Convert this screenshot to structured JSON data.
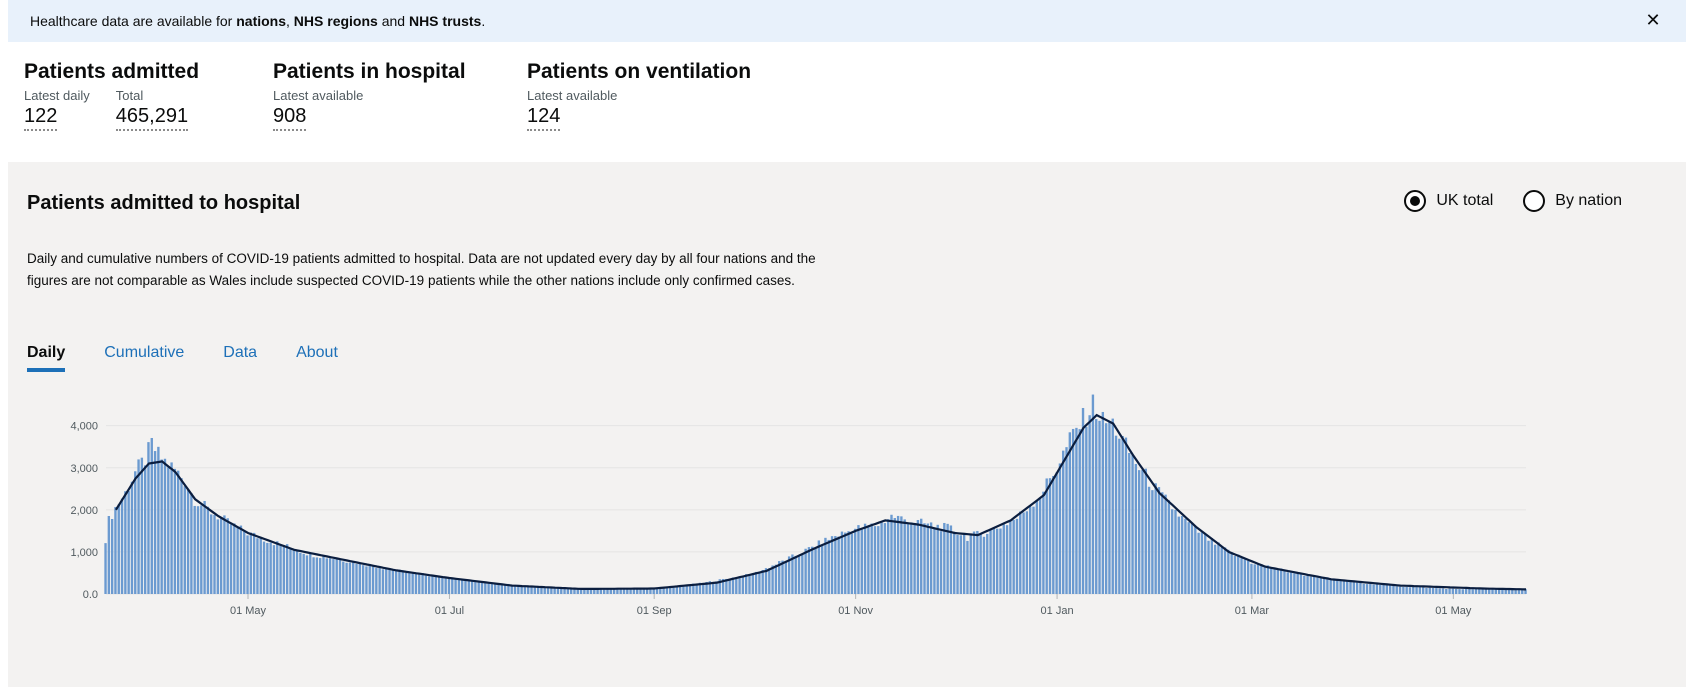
{
  "banner": {
    "prefix": "Healthcare data are available for ",
    "link1": "nations",
    "sep1": ", ",
    "link2": "NHS regions",
    "sep2": " and ",
    "link3": "NHS trusts",
    "suffix": ".",
    "close_icon": "close-icon"
  },
  "headlines": {
    "admitted": {
      "title": "Patients admitted",
      "daily_label": "Latest daily",
      "daily_value": "122",
      "total_label": "Total",
      "total_value": "465,291"
    },
    "in_hospital": {
      "title": "Patients in hospital",
      "label": "Latest available",
      "value": "908"
    },
    "ventilation": {
      "title": "Patients on ventilation",
      "label": "Latest available",
      "value": "124"
    }
  },
  "card": {
    "title": "Patients admitted to hospital",
    "radios": [
      {
        "label": "UK total",
        "checked": true
      },
      {
        "label": "By nation",
        "checked": false
      }
    ],
    "description": "Daily and cumulative numbers of COVID-19 patients admitted to hospital. Data are not updated every day by all four nations and the figures are not comparable as Wales include suspected COVID-19 patients while the other nations include only confirmed cases.",
    "tabs": [
      {
        "label": "Daily",
        "active": true
      },
      {
        "label": "Cumulative",
        "active": false
      },
      {
        "label": "Data",
        "active": false
      },
      {
        "label": "About",
        "active": false
      }
    ]
  },
  "colors": {
    "bar": "#6b9ad0",
    "line": "#0b1e3f",
    "grid": "#e4e4e4",
    "accent": "#1d70b8"
  },
  "chart_data": {
    "type": "bar",
    "series": [
      {
        "name": "",
        "kind": "bar",
        "description_only": false
      },
      {
        "name": "",
        "kind": "line"
      }
    ],
    "x_tick_labels": [
      "01 May",
      "01 Jul",
      "01 Sep",
      "01 Nov",
      "01 Jan",
      "01 Mar",
      "01 May"
    ],
    "y_tick_labels": [
      "0.0",
      "1,000",
      "2,000",
      "3,000",
      "4,000"
    ],
    "ylim": [
      0,
      4800
    ],
    "x_range": [
      "2020-03-19",
      "2021-05-23"
    ],
    "x_tick_dates": [
      "2020-05-01",
      "2020-07-01",
      "2020-09-01",
      "2020-11-01",
      "2021-01-01",
      "2021-03-01",
      "2021-05-01"
    ],
    "daily_anchor_points": [
      [
        "2020-03-19",
        1300
      ],
      [
        "2020-03-20",
        1750
      ],
      [
        "2020-03-22",
        2050
      ],
      [
        "2020-03-25",
        2400
      ],
      [
        "2020-03-28",
        2900
      ],
      [
        "2020-03-31",
        3200
      ],
      [
        "2020-04-02",
        3550
      ],
      [
        "2020-04-04",
        3300
      ],
      [
        "2020-04-06",
        3150
      ],
      [
        "2020-04-09",
        2950
      ],
      [
        "2020-04-12",
        2700
      ],
      [
        "2020-04-15",
        2250
      ],
      [
        "2020-04-20",
        1950
      ],
      [
        "2020-04-25",
        1700
      ],
      [
        "2020-05-01",
        1450
      ],
      [
        "2020-05-10",
        1200
      ],
      [
        "2020-05-20",
        950
      ],
      [
        "2020-06-01",
        780
      ],
      [
        "2020-06-15",
        560
      ],
      [
        "2020-07-01",
        380
      ],
      [
        "2020-07-15",
        250
      ],
      [
        "2020-08-01",
        140
      ],
      [
        "2020-08-15",
        110
      ],
      [
        "2020-09-01",
        130
      ],
      [
        "2020-09-15",
        250
      ],
      [
        "2020-10-01",
        470
      ],
      [
        "2020-10-15",
        950
      ],
      [
        "2020-10-25",
        1350
      ],
      [
        "2020-11-01",
        1550
      ],
      [
        "2020-11-08",
        1650
      ],
      [
        "2020-11-12",
        1850
      ],
      [
        "2020-11-20",
        1700
      ],
      [
        "2020-11-30",
        1550
      ],
      [
        "2020-12-05",
        1350
      ],
      [
        "2020-12-12",
        1500
      ],
      [
        "2020-12-20",
        1800
      ],
      [
        "2020-12-27",
        2350
      ],
      [
        "2021-01-01",
        3000
      ],
      [
        "2021-01-06",
        3800
      ],
      [
        "2021-01-10",
        4250
      ],
      [
        "2021-01-12",
        4500
      ],
      [
        "2021-01-15",
        4100
      ],
      [
        "2021-01-18",
        4050
      ],
      [
        "2021-01-22",
        3500
      ],
      [
        "2021-01-26",
        3000
      ],
      [
        "2021-02-01",
        2400
      ],
      [
        "2021-02-08",
        1800
      ],
      [
        "2021-02-15",
        1350
      ],
      [
        "2021-02-22",
        1000
      ],
      [
        "2021-03-01",
        750
      ],
      [
        "2021-03-15",
        480
      ],
      [
        "2021-04-01",
        280
      ],
      [
        "2021-04-15",
        180
      ],
      [
        "2021-05-01",
        120
      ],
      [
        "2021-05-23",
        110
      ]
    ],
    "avg_anchor_points": [
      [
        "2020-03-22",
        2000
      ],
      [
        "2020-03-28",
        2750
      ],
      [
        "2020-04-01",
        3100
      ],
      [
        "2020-04-05",
        3150
      ],
      [
        "2020-04-09",
        2900
      ],
      [
        "2020-04-15",
        2250
      ],
      [
        "2020-04-22",
        1850
      ],
      [
        "2020-05-01",
        1450
      ],
      [
        "2020-05-15",
        1050
      ],
      [
        "2020-06-01",
        780
      ],
      [
        "2020-06-15",
        560
      ],
      [
        "2020-07-01",
        380
      ],
      [
        "2020-07-20",
        200
      ],
      [
        "2020-08-10",
        120
      ],
      [
        "2020-09-01",
        130
      ],
      [
        "2020-09-20",
        270
      ],
      [
        "2020-10-05",
        550
      ],
      [
        "2020-10-20",
        1100
      ],
      [
        "2020-11-01",
        1500
      ],
      [
        "2020-11-10",
        1750
      ],
      [
        "2020-11-20",
        1650
      ],
      [
        "2020-12-01",
        1450
      ],
      [
        "2020-12-08",
        1400
      ],
      [
        "2020-12-18",
        1750
      ],
      [
        "2020-12-28",
        2350
      ],
      [
        "2021-01-03",
        3150
      ],
      [
        "2021-01-09",
        3950
      ],
      [
        "2021-01-13",
        4250
      ],
      [
        "2021-01-18",
        4050
      ],
      [
        "2021-01-24",
        3300
      ],
      [
        "2021-02-01",
        2400
      ],
      [
        "2021-02-12",
        1600
      ],
      [
        "2021-02-22",
        1000
      ],
      [
        "2021-03-05",
        650
      ],
      [
        "2021-03-25",
        350
      ],
      [
        "2021-04-15",
        200
      ],
      [
        "2021-05-10",
        130
      ],
      [
        "2021-05-23",
        110
      ]
    ]
  }
}
